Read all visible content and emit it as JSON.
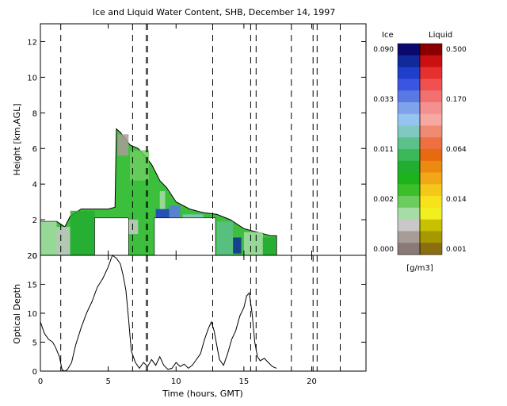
{
  "chart_data": [
    {
      "type": "heatmap",
      "title": "Ice and Liquid Water Content, SHB, December 14, 1997",
      "xlabel": "",
      "ylabel": "Height [km,AGL]",
      "xlim": [
        0,
        24
      ],
      "ylim": [
        0,
        13
      ],
      "xticks": [
        0,
        5,
        10,
        15,
        20
      ],
      "yticks": [
        0,
        2,
        4,
        6,
        8,
        10,
        12
      ],
      "vertical_markers": [
        1.5,
        6.8,
        7.8,
        7.9,
        12.7,
        15.5,
        15.9,
        18.5,
        20.1,
        20.4,
        22.1
      ],
      "data_gaps": [
        [
          4.0,
          6.5,
          0,
          2.1
        ],
        [
          8.4,
          12.9,
          0,
          2.1
        ]
      ],
      "cloud_top_km": {
        "time": [
          0.0,
          1.2,
          1.8,
          2.2,
          3.0,
          4.0,
          5.0,
          5.5,
          5.6,
          5.9,
          6.3,
          6.6,
          7.2,
          7.8,
          8.2,
          8.6,
          8.8,
          9.3,
          10.0,
          11.0,
          12.0,
          13.0,
          14.0,
          15.0,
          16.0,
          17.0,
          17.4
        ],
        "top": [
          1.9,
          1.9,
          1.6,
          2.2,
          2.6,
          2.6,
          2.6,
          2.7,
          7.1,
          6.9,
          6.5,
          6.2,
          6.0,
          5.5,
          5.1,
          4.5,
          4.2,
          3.8,
          3.0,
          2.6,
          2.4,
          2.3,
          2.0,
          1.5,
          1.3,
          1.1,
          1.1
        ]
      },
      "colorbar": {
        "ice_label": "Ice",
        "liquid_label": "Liquid",
        "unit": "[g/m3]",
        "ice_ticks": [
          "0.090",
          "0.033",
          "0.011",
          "0.002",
          "0.000"
        ],
        "liquid_ticks": [
          "0.500",
          "0.170",
          "0.064",
          "0.014",
          "0.001"
        ],
        "ice_colors": [
          "#0a0a6e",
          "#102a9c",
          "#1f3ec9",
          "#3a55e0",
          "#5a78e4",
          "#7fa2ea",
          "#96c4f0",
          "#80c8c0",
          "#5cc08a",
          "#3ab85a",
          "#22ac30",
          "#1cb41a",
          "#3cc02a",
          "#6ccc60",
          "#a6dca6",
          "#c8c8c8",
          "#a89c96",
          "#8a7a76"
        ],
        "liquid_colors": [
          "#8a0000",
          "#cc1010",
          "#e63030",
          "#f05050",
          "#f27070",
          "#f59090",
          "#f7a8a0",
          "#f08a70",
          "#ee7040",
          "#e86a10",
          "#ec8a10",
          "#f0a818",
          "#f4c818",
          "#f8e21c",
          "#f0f020",
          "#c8c000",
          "#a89800",
          "#8a6e10"
        ]
      }
    },
    {
      "type": "line",
      "xlabel": "Time (hours, GMT)",
      "ylabel": "Optical Depth",
      "xlim": [
        0,
        24
      ],
      "ylim": [
        0,
        20
      ],
      "xticks": [
        0,
        5,
        10,
        15,
        20
      ],
      "yticks": [
        0,
        5,
        10,
        15,
        20
      ],
      "vertical_markers": [
        1.5,
        6.8,
        7.8,
        7.9,
        12.7,
        15.5,
        15.9,
        18.5,
        20.1,
        20.4,
        22.1
      ],
      "x": [
        0.0,
        0.3,
        0.6,
        0.9,
        1.1,
        1.4,
        1.6,
        1.8,
        2.0,
        2.3,
        2.6,
        3.0,
        3.4,
        3.8,
        4.2,
        4.6,
        5.0,
        5.3,
        5.6,
        5.9,
        6.1,
        6.3,
        6.5,
        6.7,
        7.0,
        7.3,
        7.6,
        7.9,
        8.2,
        8.5,
        8.8,
        9.1,
        9.4,
        9.7,
        10.0,
        10.3,
        10.6,
        10.9,
        11.2,
        11.5,
        11.8,
        12.1,
        12.4,
        12.6,
        12.8,
        13.0,
        13.2,
        13.5,
        13.8,
        14.1,
        14.4,
        14.7,
        15.0,
        15.2,
        15.4,
        15.6,
        15.8,
        16.0,
        16.2,
        16.5,
        16.8,
        17.1,
        17.4
      ],
      "series": [
        {
          "values": [
            8.5,
            6.5,
            5.5,
            5.0,
            4.2,
            2.5,
            0.2,
            0.0,
            0.3,
            1.5,
            4.5,
            7.5,
            10.0,
            12.0,
            14.5,
            16.0,
            18.0,
            20.0,
            19.5,
            18.5,
            16.5,
            14.0,
            9.0,
            3.5,
            1.5,
            0.5,
            1.5,
            0.8,
            2.0,
            1.0,
            2.5,
            1.0,
            0.3,
            0.5,
            1.5,
            0.8,
            1.2,
            0.5,
            1.0,
            2.0,
            3.0,
            5.5,
            7.5,
            8.5,
            7.0,
            4.5,
            2.0,
            1.0,
            3.0,
            5.5,
            7.0,
            9.5,
            11.0,
            13.0,
            13.5,
            10.0,
            5.0,
            2.5,
            1.8,
            2.2,
            1.5,
            0.8,
            0.5
          ]
        }
      ]
    }
  ]
}
